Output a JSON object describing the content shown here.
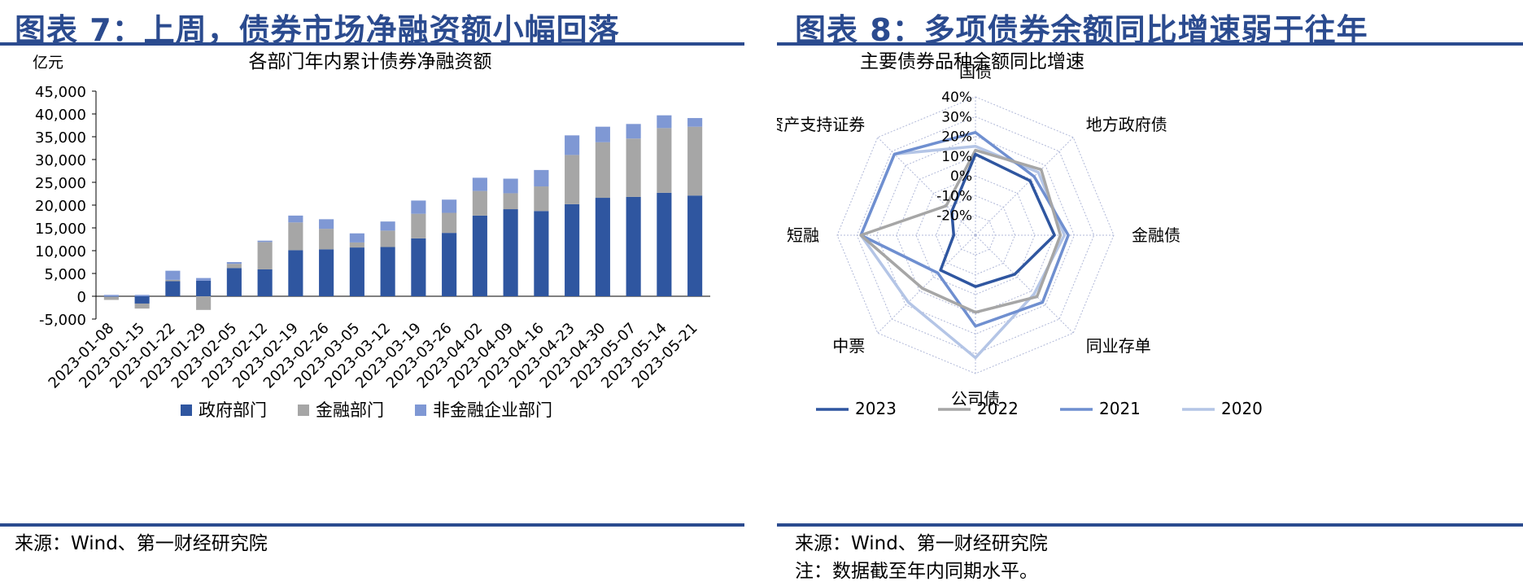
{
  "left": {
    "fig_title": "图表 7：上周，债券市场净融资额小幅回落",
    "source": "来源：Wind、第一财经研究院"
  },
  "right": {
    "fig_title": "图表 8：多项债券余额同比增速弱于往年",
    "source": "来源：Wind、第一财经研究院",
    "note": "注：数据截至年内同期水平。"
  },
  "colors": {
    "accent": "#2b4b8f",
    "gov": "#2f56a0",
    "fin": "#a6a6a6",
    "nonfin": "#7f98d4",
    "s2023": "#2f56a0",
    "s2022": "#a6a6a6",
    "s2021": "#6f8fd0",
    "s2020": "#b4c5e6"
  },
  "chart_data": [
    {
      "type": "bar",
      "stacked": true,
      "title": "各部门年内累计债券净融资额",
      "unit_label": "亿元",
      "ylim": [
        -5000,
        45000
      ],
      "yticks": [
        "-5,000",
        "0",
        "5,000",
        "10,000",
        "15,000",
        "20,000",
        "25,000",
        "30,000",
        "35,000",
        "40,000",
        "45,000"
      ],
      "ytick_values": [
        -5000,
        0,
        5000,
        10000,
        15000,
        20000,
        25000,
        30000,
        35000,
        40000,
        45000
      ],
      "categories": [
        "2023-01-08",
        "2023-01-15",
        "2023-01-22",
        "2023-01-29",
        "2023-02-05",
        "2023-02-12",
        "2023-02-19",
        "2023-02-26",
        "2023-03-05",
        "2023-03-12",
        "2023-03-19",
        "2023-03-26",
        "2023-04-02",
        "2023-04-09",
        "2023-04-16",
        "2023-04-23",
        "2023-04-30",
        "2023-05-07",
        "2023-05-14",
        "2023-05-21"
      ],
      "legend_position": "bottom",
      "series": [
        {
          "name": "政府部门",
          "color_key": "gov",
          "values": [
            -100,
            -1600,
            3300,
            3400,
            6200,
            5900,
            10100,
            10300,
            10700,
            10800,
            12700,
            13900,
            17700,
            19100,
            18700,
            20200,
            21600,
            21800,
            22700,
            22100
          ]
        },
        {
          "name": "金融部门",
          "color_key": "fin",
          "values": [
            -700,
            -1100,
            300,
            -3000,
            900,
            6000,
            6100,
            4500,
            1100,
            3600,
            5400,
            4400,
            5400,
            3500,
            5400,
            10800,
            12200,
            12800,
            14200,
            15100
          ]
        },
        {
          "name": "非金融企业部门",
          "color_key": "nonfin",
          "values": [
            300,
            300,
            2000,
            600,
            400,
            300,
            1500,
            2100,
            2000,
            2000,
            2900,
            2900,
            2900,
            3200,
            3600,
            4300,
            3400,
            3200,
            2800,
            1900
          ]
        }
      ]
    },
    {
      "type": "radar",
      "title": "主要债券品种余额同比增速",
      "axes": [
        "国债",
        "地方政府债",
        "金融债",
        "同业存单",
        "公司债",
        "中票",
        "短融",
        "资产支持证券"
      ],
      "rlim": [
        -30,
        40
      ],
      "rticks": [
        "40%",
        "30%",
        "20%",
        "10%",
        "0%",
        "-10%",
        "-20%"
      ],
      "rtick_values": [
        40,
        30,
        20,
        10,
        0,
        -10,
        -20
      ],
      "legend_position": "bottom",
      "series": [
        {
          "name": "2023",
          "color_key": "s2023",
          "values": [
            11,
            9,
            10,
            -2,
            -4,
            -5,
            -19,
            -13
          ]
        },
        {
          "name": "2022",
          "color_key": "s2022",
          "values": [
            13,
            17,
            13,
            14,
            9,
            8,
            28,
            -9
          ]
        },
        {
          "name": "2021",
          "color_key": "s2021",
          "values": [
            22,
            12,
            17,
            18,
            16,
            -3,
            28,
            28
          ]
        },
        {
          "name": "2020",
          "color_key": "s2020",
          "values": [
            15,
            15,
            15,
            12,
            32,
            18,
            28,
            28
          ]
        }
      ]
    }
  ]
}
